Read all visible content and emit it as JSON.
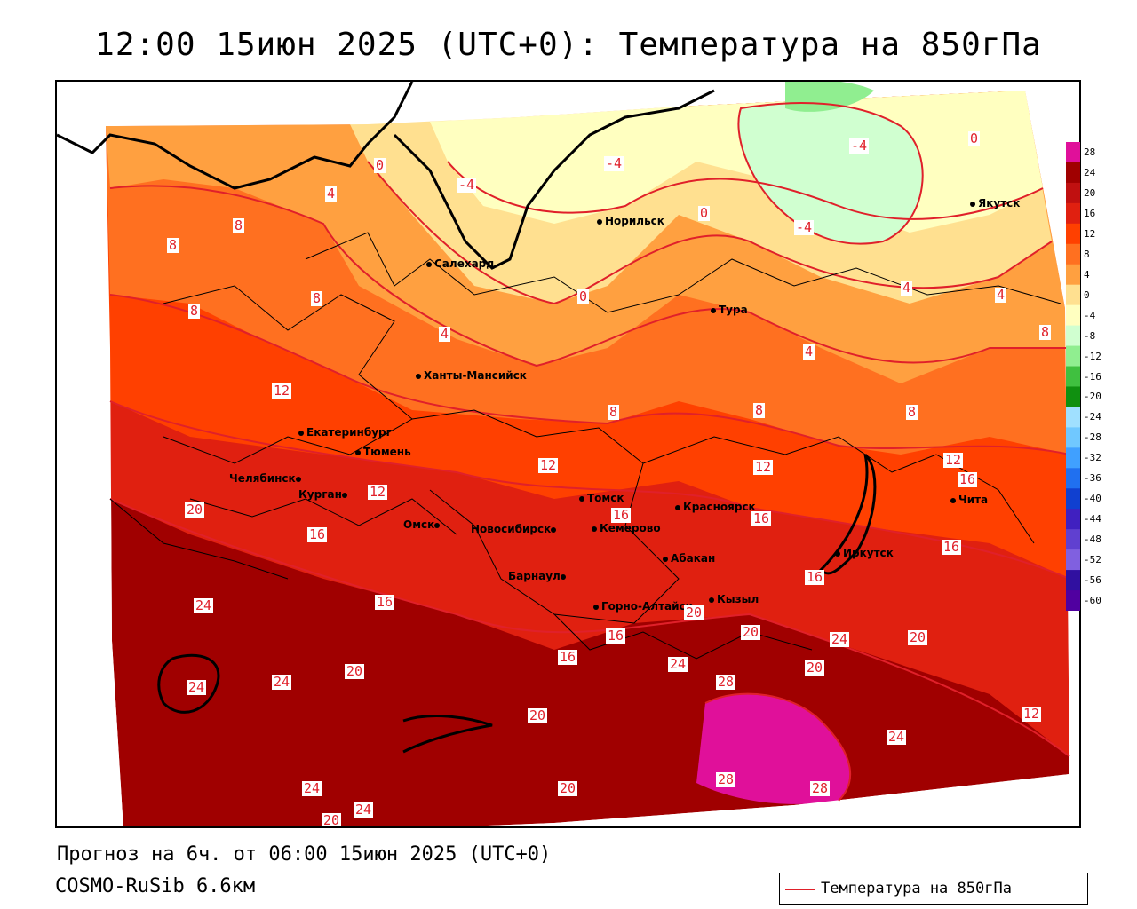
{
  "title": "12:00 15июн 2025 (UTC+0): Температура на 850гПа",
  "footer": {
    "forecast": "Прогноз на 6ч. от 06:00 15июн 2025 (UTC+0)",
    "model": "COSMO-RuSib 6.6км"
  },
  "legend": {
    "label": "Температура на 850гПа",
    "color": "#e0202a"
  },
  "colorbar": {
    "ticks": [
      "28",
      "24",
      "20",
      "16",
      "12",
      "8",
      "4",
      "0",
      "-4",
      "-8",
      "-12",
      "-16",
      "-20",
      "-24",
      "-28",
      "-32",
      "-36",
      "-40",
      "-44",
      "-48",
      "-52",
      "-56",
      "-60"
    ],
    "colors": [
      "#e0109a",
      "#a00000",
      "#c01010",
      "#e02010",
      "#ff4000",
      "#ff7020",
      "#ffa040",
      "#ffe090",
      "#ffffc0",
      "#d0ffd0",
      "#90ee90",
      "#40c040",
      "#109010",
      "#a0e0ff",
      "#70c8ff",
      "#40a0ff",
      "#2070f0",
      "#1040d0",
      "#4020c0",
      "#6040d0",
      "#8060e0",
      "#3010a0",
      "#5000a0"
    ]
  },
  "cities": [
    {
      "name": "Норильск"
    },
    {
      "name": "Якутск"
    },
    {
      "name": "Салехард"
    },
    {
      "name": "Тура"
    },
    {
      "name": "Ханты-Мансийск"
    },
    {
      "name": "Екатеринбург"
    },
    {
      "name": "Тюмень"
    },
    {
      "name": "Челябинск"
    },
    {
      "name": "Курган"
    },
    {
      "name": "Омск"
    },
    {
      "name": "Новосибирск"
    },
    {
      "name": "Томск"
    },
    {
      "name": "Кемерово"
    },
    {
      "name": "Красноярск"
    },
    {
      "name": "Абакан"
    },
    {
      "name": "Барнаул"
    },
    {
      "name": "Горно-Алтайск"
    },
    {
      "name": "Кызыл"
    },
    {
      "name": "Иркутск"
    },
    {
      "name": "Чита"
    }
  ],
  "isotherm_labels": [
    "0",
    "4",
    "8",
    "8",
    "8",
    "-4",
    "-4",
    "0",
    "-4",
    "-4",
    "0",
    "0",
    "4",
    "4",
    "4",
    "4",
    "8",
    "8",
    "8",
    "8",
    "8",
    "12",
    "12",
    "12",
    "12",
    "12",
    "16",
    "16",
    "16",
    "16",
    "16",
    "16",
    "16",
    "16",
    "16",
    "20",
    "20",
    "20",
    "20",
    "20",
    "20",
    "20",
    "20",
    "20",
    "24",
    "24",
    "24",
    "24",
    "24",
    "24",
    "24",
    "24",
    "28",
    "28",
    "28",
    "12"
  ]
}
